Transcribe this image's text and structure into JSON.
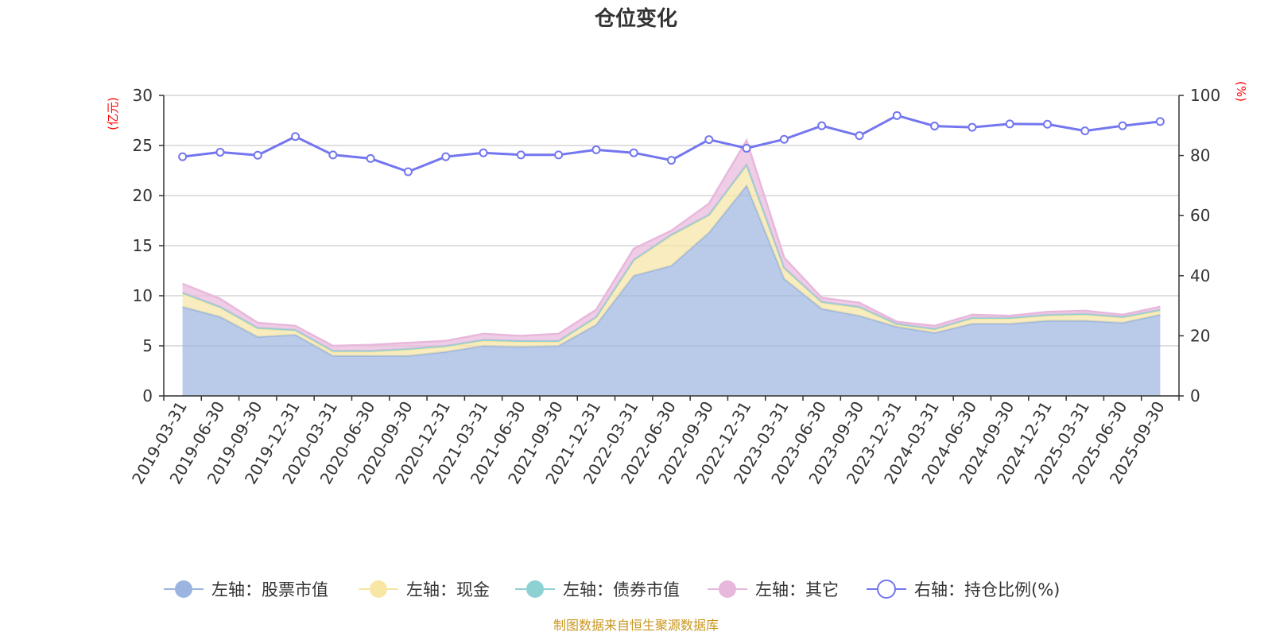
{
  "chart_data": {
    "type": "area",
    "title": "仓位变化",
    "left_unit": "(亿元)",
    "right_unit": "(%)",
    "categories": [
      "2019-03-31",
      "2019-06-30",
      "2019-09-30",
      "2019-12-31",
      "2020-03-31",
      "2020-06-30",
      "2020-09-30",
      "2020-12-31",
      "2021-03-31",
      "2021-06-30",
      "2021-09-30",
      "2021-12-31",
      "2022-03-31",
      "2022-06-30",
      "2022-09-30",
      "2022-12-31",
      "2023-03-31",
      "2023-06-30",
      "2023-09-30",
      "2023-12-31",
      "2024-03-31",
      "2024-06-30",
      "2024-09-30",
      "2024-12-31",
      "2025-03-31",
      "2025-06-30",
      "2025-09-30"
    ],
    "left_axis": {
      "min": 0,
      "max": 30,
      "ticks": [
        0,
        5,
        10,
        15,
        20,
        25,
        30
      ]
    },
    "right_axis": {
      "min": 0,
      "max": 100,
      "ticks": [
        0,
        20,
        40,
        60,
        80,
        100
      ]
    },
    "series": [
      {
        "name": "左轴：股票市值",
        "axis": "left",
        "kind": "stack",
        "color": "#9bb5e0",
        "values": [
          8.9,
          7.9,
          5.9,
          6.1,
          4.0,
          4.0,
          4.0,
          4.4,
          5.0,
          4.9,
          5.0,
          7.1,
          12.0,
          13.0,
          16.3,
          21.0,
          11.7,
          8.7,
          8.0,
          6.9,
          6.3,
          7.2,
          7.2,
          7.5,
          7.5,
          7.3,
          8.1
        ]
      },
      {
        "name": "左轴：现金",
        "axis": "left",
        "kind": "stack",
        "color": "#f7e6a4",
        "values": [
          1.3,
          0.9,
          0.8,
          0.4,
          0.4,
          0.4,
          0.6,
          0.5,
          0.5,
          0.5,
          0.4,
          0.7,
          1.5,
          3.0,
          1.7,
          2.0,
          1.0,
          0.6,
          0.8,
          0.2,
          0.3,
          0.5,
          0.5,
          0.5,
          0.6,
          0.5,
          0.4
        ]
      },
      {
        "name": "左轴：债券市值",
        "axis": "left",
        "kind": "stack",
        "color": "#8ed1d4",
        "values": [
          0.1,
          0.1,
          0.1,
          0.1,
          0.1,
          0.1,
          0.1,
          0.1,
          0.1,
          0.1,
          0.1,
          0.1,
          0.1,
          0.1,
          0.1,
          0.1,
          0.1,
          0.1,
          0.1,
          0.1,
          0.1,
          0.1,
          0.1,
          0.1,
          0.1,
          0.1,
          0.1
        ]
      },
      {
        "name": "左轴：其它",
        "axis": "left",
        "kind": "stack",
        "color": "#e8b8dc",
        "values": [
          0.9,
          0.8,
          0.5,
          0.4,
          0.5,
          0.6,
          0.6,
          0.5,
          0.6,
          0.5,
          0.7,
          0.7,
          1.1,
          0.4,
          1.1,
          2.4,
          1.0,
          0.4,
          0.4,
          0.2,
          0.3,
          0.3,
          0.2,
          0.3,
          0.3,
          0.2,
          0.3
        ]
      },
      {
        "name": "右轴：持仓比例(%)",
        "axis": "right",
        "kind": "line",
        "color": "#7376ee",
        "values": [
          79.6,
          81.1,
          80.1,
          86.3,
          80.2,
          79.0,
          74.6,
          79.6,
          80.9,
          80.2,
          80.2,
          81.9,
          80.9,
          78.4,
          85.3,
          82.4,
          85.4,
          89.9,
          86.6,
          93.3,
          89.8,
          89.4,
          90.5,
          90.4,
          88.2,
          89.9,
          91.3
        ]
      }
    ],
    "source": "制图数据来自恒生聚源数据库"
  }
}
